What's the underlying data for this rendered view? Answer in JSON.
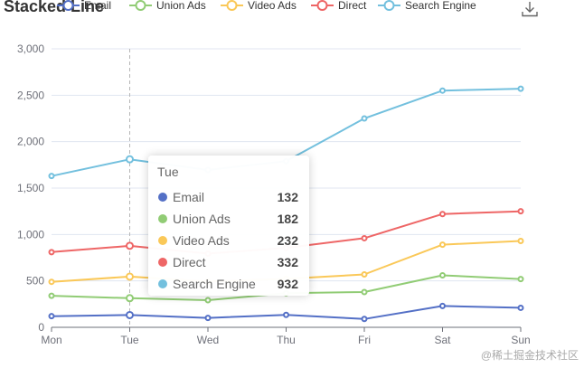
{
  "chart_data": {
    "type": "line",
    "title": "Stacked Line",
    "categories": [
      "Mon",
      "Tue",
      "Wed",
      "Thu",
      "Fri",
      "Sat",
      "Sun"
    ],
    "ylim": [
      0,
      3000
    ],
    "yticks": [
      0,
      500,
      1000,
      1500,
      2000,
      2500,
      3000
    ],
    "ytick_labels": [
      "0",
      "500",
      "1,000",
      "1,500",
      "2,000",
      "2,500",
      "3,000"
    ],
    "stacked": true,
    "grid": true,
    "legend_position": "top",
    "series": [
      {
        "name": "Email",
        "color": "#5470c6",
        "values": [
          120,
          132,
          101,
          134,
          90,
          230,
          210
        ],
        "cumulative": [
          120,
          132,
          101,
          134,
          90,
          230,
          210
        ]
      },
      {
        "name": "Union Ads",
        "color": "#91cc75",
        "values": [
          220,
          182,
          191,
          234,
          290,
          330,
          310
        ],
        "cumulative": [
          340,
          314,
          292,
          368,
          380,
          560,
          520
        ]
      },
      {
        "name": "Video Ads",
        "color": "#fac858",
        "values": [
          150,
          232,
          201,
          154,
          190,
          330,
          410
        ],
        "cumulative": [
          490,
          546,
          493,
          522,
          570,
          890,
          930
        ]
      },
      {
        "name": "Direct",
        "color": "#ee6666",
        "values": [
          320,
          332,
          301,
          334,
          390,
          330,
          320
        ],
        "cumulative": [
          810,
          878,
          794,
          856,
          960,
          1220,
          1250
        ]
      },
      {
        "name": "Search Engine",
        "color": "#73c0de",
        "values": [
          820,
          932,
          901,
          934,
          1290,
          1330,
          1320
        ],
        "cumulative": [
          1630,
          1810,
          1695,
          1790,
          2250,
          2550,
          2570
        ]
      }
    ]
  },
  "tooltip": {
    "title": "Tue",
    "rows": [
      {
        "name": "Email",
        "value": "132",
        "color": "#5470c6"
      },
      {
        "name": "Union Ads",
        "value": "182",
        "color": "#91cc75"
      },
      {
        "name": "Video Ads",
        "value": "232",
        "color": "#fac858"
      },
      {
        "name": "Direct",
        "value": "332",
        "color": "#ee6666"
      },
      {
        "name": "Search Engine",
        "value": "932",
        "color": "#73c0de"
      }
    ]
  },
  "hover": {
    "category": "Tue"
  },
  "toolbox": {
    "icon": "download-icon"
  },
  "watermark": "@稀土掘金技术社区"
}
